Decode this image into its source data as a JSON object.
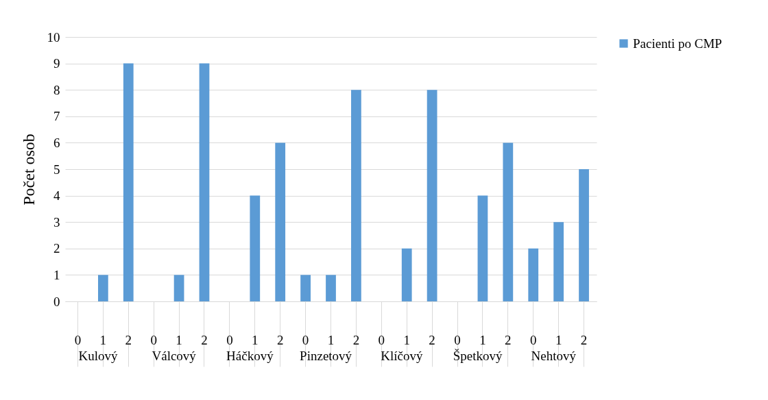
{
  "chart_data": {
    "type": "bar",
    "ylabel": "Počet osob",
    "categories": [
      "0",
      "1",
      "2",
      "0",
      "1",
      "2",
      "0",
      "1",
      "2",
      "0",
      "1",
      "2",
      "0",
      "1",
      "2",
      "0",
      "1",
      "2",
      "0",
      "1",
      "2"
    ],
    "annotations": [
      "Kulový",
      "Válcový",
      "Háčkový",
      "Pinzetový",
      "Klíčový",
      "Špetkový",
      "Nehtový"
    ],
    "series": [
      {
        "name": "Pacienti po CMP",
        "color": "#5b9bd5",
        "values": [
          0,
          1,
          9,
          0,
          1,
          9,
          0,
          4,
          6,
          1,
          1,
          8,
          0,
          2,
          8,
          0,
          4,
          6,
          2,
          3,
          5
        ]
      }
    ],
    "ylim": [
      0,
      10
    ],
    "yticks": [
      0,
      1,
      2,
      3,
      4,
      5,
      6,
      7,
      8,
      9,
      10
    ],
    "grid": "y",
    "legend": "right"
  }
}
